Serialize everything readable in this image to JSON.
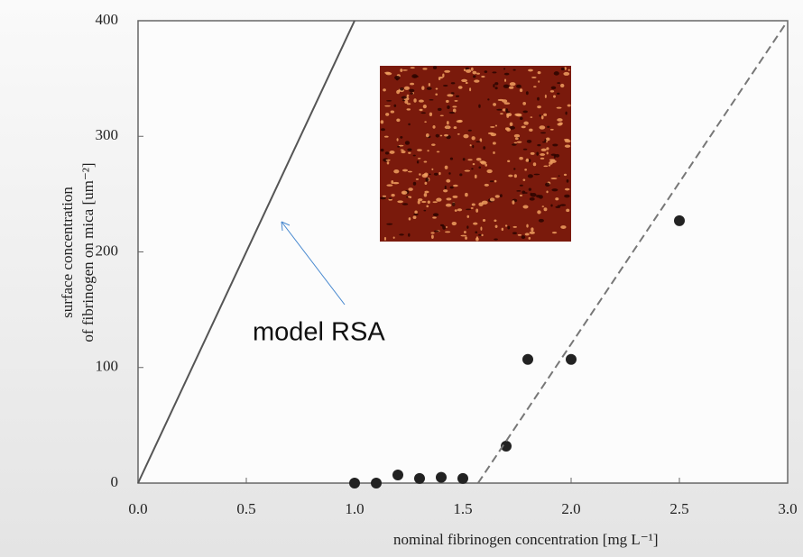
{
  "chart_data": {
    "type": "scatter",
    "xlabel": "nominal fibrinogen concentration [mg L⁻¹]",
    "ylabel": [
      "surface concentration",
      "of fibrinogen on mica [um⁻²]"
    ],
    "annotation": "model RSA",
    "xlim": [
      0,
      3
    ],
    "ylim": [
      0,
      400
    ],
    "xticks": [
      {
        "value": 0,
        "label": "0.0"
      },
      0.5,
      {
        "value": 1,
        "label": "1.0"
      },
      1.5,
      {
        "value": 2,
        "label": "2.0"
      },
      2.5,
      {
        "value": 3,
        "label": "3.0"
      }
    ],
    "yticks": [
      0,
      100,
      200,
      300,
      400
    ],
    "series": [
      {
        "type": "scatter",
        "color": "#222222",
        "x": [
          1.0,
          1.1,
          1.2,
          1.3,
          1.4,
          1.5,
          1.7,
          1.8,
          2.0,
          2.5
        ],
        "values": [
          0,
          0,
          7,
          4,
          5,
          4,
          32,
          107,
          107,
          227
        ]
      },
      {
        "type": "line",
        "color": "#555555",
        "dashed": false,
        "x": [
          0,
          1.0
        ],
        "values": [
          0,
          400
        ]
      },
      {
        "type": "line",
        "color": "#777777",
        "dashed": true,
        "x": [
          1.57,
          3.0
        ],
        "values": [
          0,
          400
        ]
      }
    ]
  }
}
